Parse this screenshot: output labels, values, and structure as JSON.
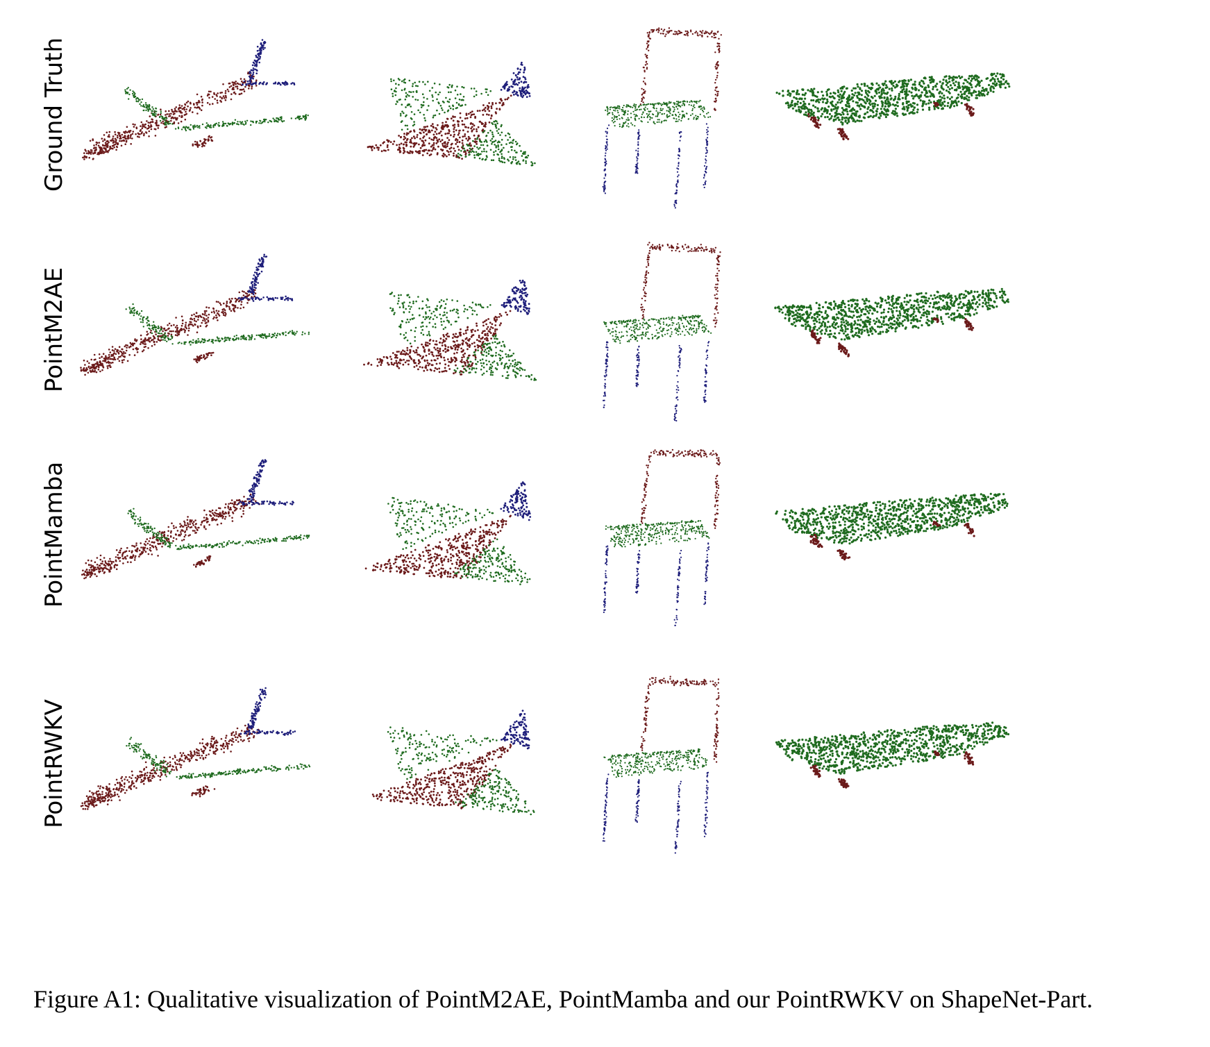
{
  "figure": {
    "rows": [
      {
        "label": "Ground Truth"
      },
      {
        "label": "PointM2AE"
      },
      {
        "label": "PointMamba"
      },
      {
        "label": "PointRWKV"
      }
    ],
    "colors": {
      "red": "#6b1a1a",
      "green": "#1f6b1f",
      "blue": "#1e1e7a"
    }
  },
  "caption": "Figure A1: Qualitative visualization of PointM2AE, PointMamba and our PointRWKV on ShapeNet-Part."
}
